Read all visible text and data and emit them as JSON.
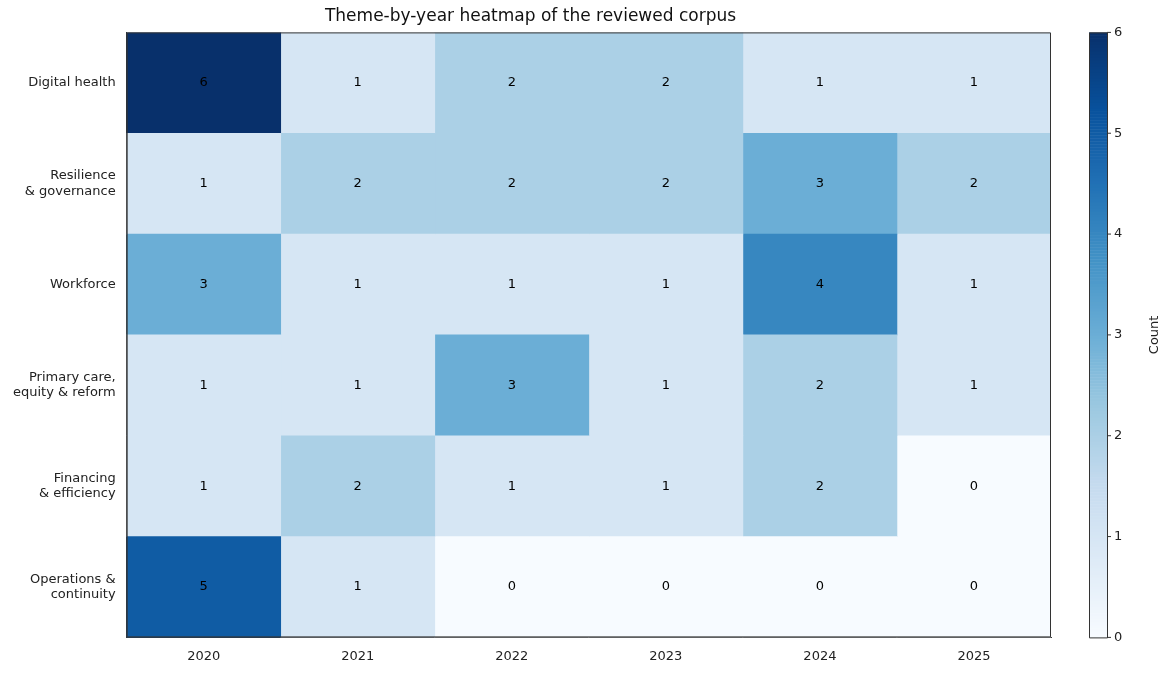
{
  "chart_data": {
    "type": "heatmap",
    "title": "Theme-by-year heatmap of the reviewed corpus",
    "categories": [
      "2020",
      "2021",
      "2022",
      "2023",
      "2024",
      "2025"
    ],
    "y_categories": [
      "Digital health",
      "Resilience\n& governance",
      "Workforce",
      "Primary care,\nequity & reform",
      "Financing\n& efficiency",
      "Operations &\ncontinuity"
    ],
    "cells": [
      [
        6,
        1,
        2,
        2,
        1,
        1
      ],
      [
        1,
        2,
        2,
        2,
        3,
        2
      ],
      [
        3,
        1,
        1,
        1,
        4,
        1
      ],
      [
        1,
        1,
        3,
        1,
        2,
        1
      ],
      [
        1,
        2,
        1,
        1,
        2,
        0
      ],
      [
        5,
        1,
        0,
        0,
        0,
        0
      ]
    ],
    "data_labels": true,
    "clim": [
      0,
      6
    ],
    "cticks": [
      0,
      1,
      2,
      3,
      4,
      5,
      6
    ],
    "clabel": "Count",
    "grid": false
  }
}
